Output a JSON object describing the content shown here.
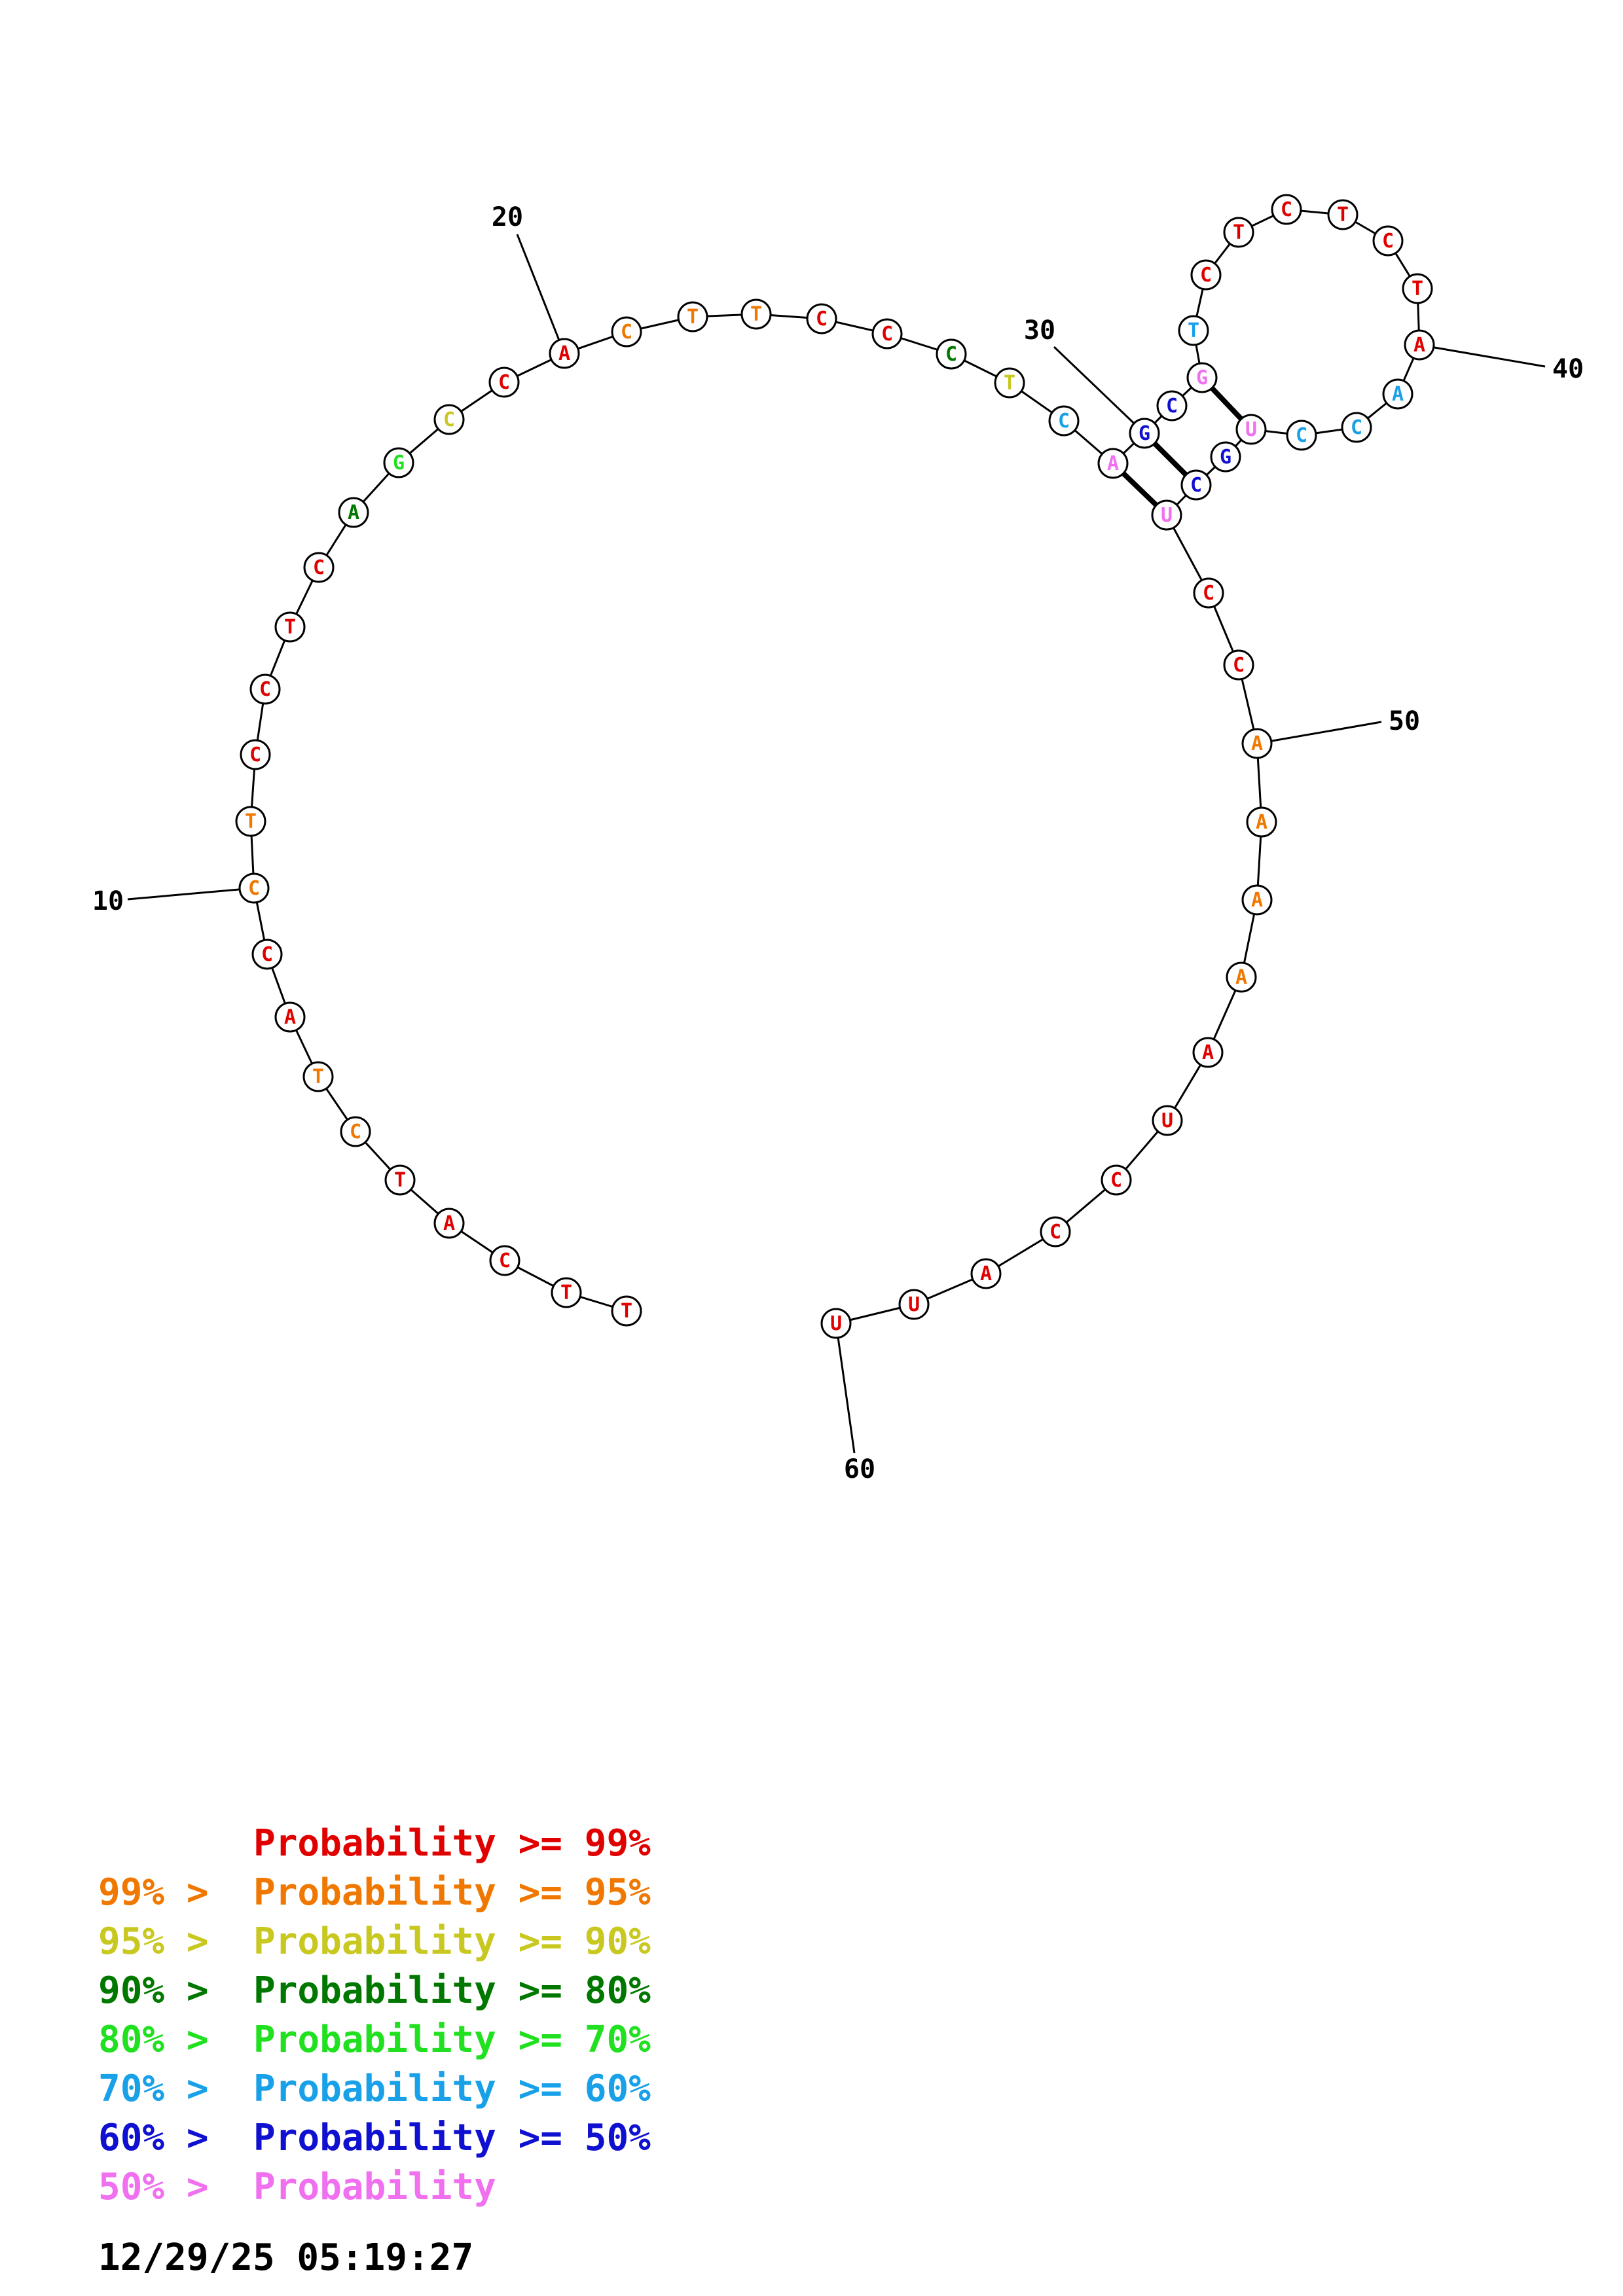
{
  "colors": {
    "p99": "#e00000",
    "p95": "#f07800",
    "p90": "#c8c820",
    "p80": "#007800",
    "p70": "#20e020",
    "p60": "#18a0e8",
    "p50": "#1010d0",
    "plt50": "#f070f0"
  },
  "sequence": [
    {
      "n": 1,
      "base": "T",
      "c": "p99"
    },
    {
      "n": 2,
      "base": "T",
      "c": "p99"
    },
    {
      "n": 3,
      "base": "C",
      "c": "p99"
    },
    {
      "n": 4,
      "base": "A",
      "c": "p99"
    },
    {
      "n": 5,
      "base": "T",
      "c": "p99"
    },
    {
      "n": 6,
      "base": "C",
      "c": "p95"
    },
    {
      "n": 7,
      "base": "T",
      "c": "p95"
    },
    {
      "n": 8,
      "base": "A",
      "c": "p99"
    },
    {
      "n": 9,
      "base": "C",
      "c": "p99"
    },
    {
      "n": 10,
      "base": "C",
      "c": "p95"
    },
    {
      "n": 11,
      "base": "T",
      "c": "p95"
    },
    {
      "n": 12,
      "base": "C",
      "c": "p99"
    },
    {
      "n": 13,
      "base": "C",
      "c": "p99"
    },
    {
      "n": 14,
      "base": "T",
      "c": "p99"
    },
    {
      "n": 15,
      "base": "C",
      "c": "p99"
    },
    {
      "n": 16,
      "base": "A",
      "c": "p80"
    },
    {
      "n": 17,
      "base": "G",
      "c": "p70"
    },
    {
      "n": 18,
      "base": "C",
      "c": "p90"
    },
    {
      "n": 19,
      "base": "C",
      "c": "p99"
    },
    {
      "n": 20,
      "base": "A",
      "c": "p99"
    },
    {
      "n": 21,
      "base": "C",
      "c": "p95"
    },
    {
      "n": 22,
      "base": "T",
      "c": "p95"
    },
    {
      "n": 23,
      "base": "T",
      "c": "p95"
    },
    {
      "n": 24,
      "base": "C",
      "c": "p99"
    },
    {
      "n": 25,
      "base": "C",
      "c": "p99"
    },
    {
      "n": 26,
      "base": "C",
      "c": "p80"
    },
    {
      "n": 27,
      "base": "T",
      "c": "p90"
    },
    {
      "n": 28,
      "base": "C",
      "c": "p60"
    },
    {
      "n": 29,
      "base": "A",
      "c": "plt50"
    },
    {
      "n": 30,
      "base": "G",
      "c": "p50"
    },
    {
      "n": 31,
      "base": "C",
      "c": "p50"
    },
    {
      "n": 32,
      "base": "G",
      "c": "plt50"
    },
    {
      "n": 33,
      "base": "T",
      "c": "p60"
    },
    {
      "n": 34,
      "base": "C",
      "c": "p99"
    },
    {
      "n": 35,
      "base": "T",
      "c": "p99"
    },
    {
      "n": 36,
      "base": "C",
      "c": "p99"
    },
    {
      "n": 37,
      "base": "T",
      "c": "p99"
    },
    {
      "n": 38,
      "base": "C",
      "c": "p99"
    },
    {
      "n": 39,
      "base": "T",
      "c": "p99"
    },
    {
      "n": 40,
      "base": "A",
      "c": "p99"
    },
    {
      "n": 41,
      "base": "A",
      "c": "p60"
    },
    {
      "n": 42,
      "base": "C",
      "c": "p60"
    },
    {
      "n": 43,
      "base": "C",
      "c": "p60"
    },
    {
      "n": 44,
      "base": "U",
      "c": "plt50"
    },
    {
      "n": 45,
      "base": "G",
      "c": "p50"
    },
    {
      "n": 46,
      "base": "C",
      "c": "p50"
    },
    {
      "n": 47,
      "base": "U",
      "c": "plt50"
    },
    {
      "n": 48,
      "base": "C",
      "c": "p99"
    },
    {
      "n": 49,
      "base": "C",
      "c": "p99"
    },
    {
      "n": 50,
      "base": "A",
      "c": "p95"
    },
    {
      "n": 51,
      "base": "A",
      "c": "p95"
    },
    {
      "n": 52,
      "base": "A",
      "c": "p95"
    },
    {
      "n": 53,
      "base": "A",
      "c": "p95"
    },
    {
      "n": 54,
      "base": "A",
      "c": "p99"
    },
    {
      "n": 55,
      "base": "U",
      "c": "p99"
    },
    {
      "n": 56,
      "base": "C",
      "c": "p99"
    },
    {
      "n": 57,
      "base": "C",
      "c": "p99"
    },
    {
      "n": 58,
      "base": "A",
      "c": "p99"
    },
    {
      "n": 59,
      "base": "U",
      "c": "p99"
    },
    {
      "n": 60,
      "base": "U",
      "c": "p99"
    }
  ],
  "pairs": [
    [
      29,
      47
    ],
    [
      30,
      46
    ],
    [
      32,
      44
    ]
  ],
  "index_labels": [
    {
      "n": 10,
      "text": "10"
    },
    {
      "n": 20,
      "text": "20"
    },
    {
      "n": 30,
      "text": "30"
    },
    {
      "n": 40,
      "text": "40"
    },
    {
      "n": 50,
      "text": "50"
    },
    {
      "n": 60,
      "text": "60"
    }
  ],
  "legend": [
    {
      "prefix": "",
      "text": "Probability >= 99%",
      "c": "p99"
    },
    {
      "prefix": "99% > ",
      "text": "Probability >= 95%",
      "c": "p95"
    },
    {
      "prefix": "95% > ",
      "text": "Probability >= 90%",
      "c": "p90"
    },
    {
      "prefix": "90% > ",
      "text": "Probability >= 80%",
      "c": "p80"
    },
    {
      "prefix": "80% > ",
      "text": "Probability >= 70%",
      "c": "p70"
    },
    {
      "prefix": "70% > ",
      "text": "Probability >= 60%",
      "c": "p60"
    },
    {
      "prefix": "60% > ",
      "text": "Probability >= 50%",
      "c": "p50"
    },
    {
      "prefix": "50% > ",
      "text": "Probability",
      "c": "plt50"
    }
  ],
  "timestamp": "12/29/25 05:19:27"
}
